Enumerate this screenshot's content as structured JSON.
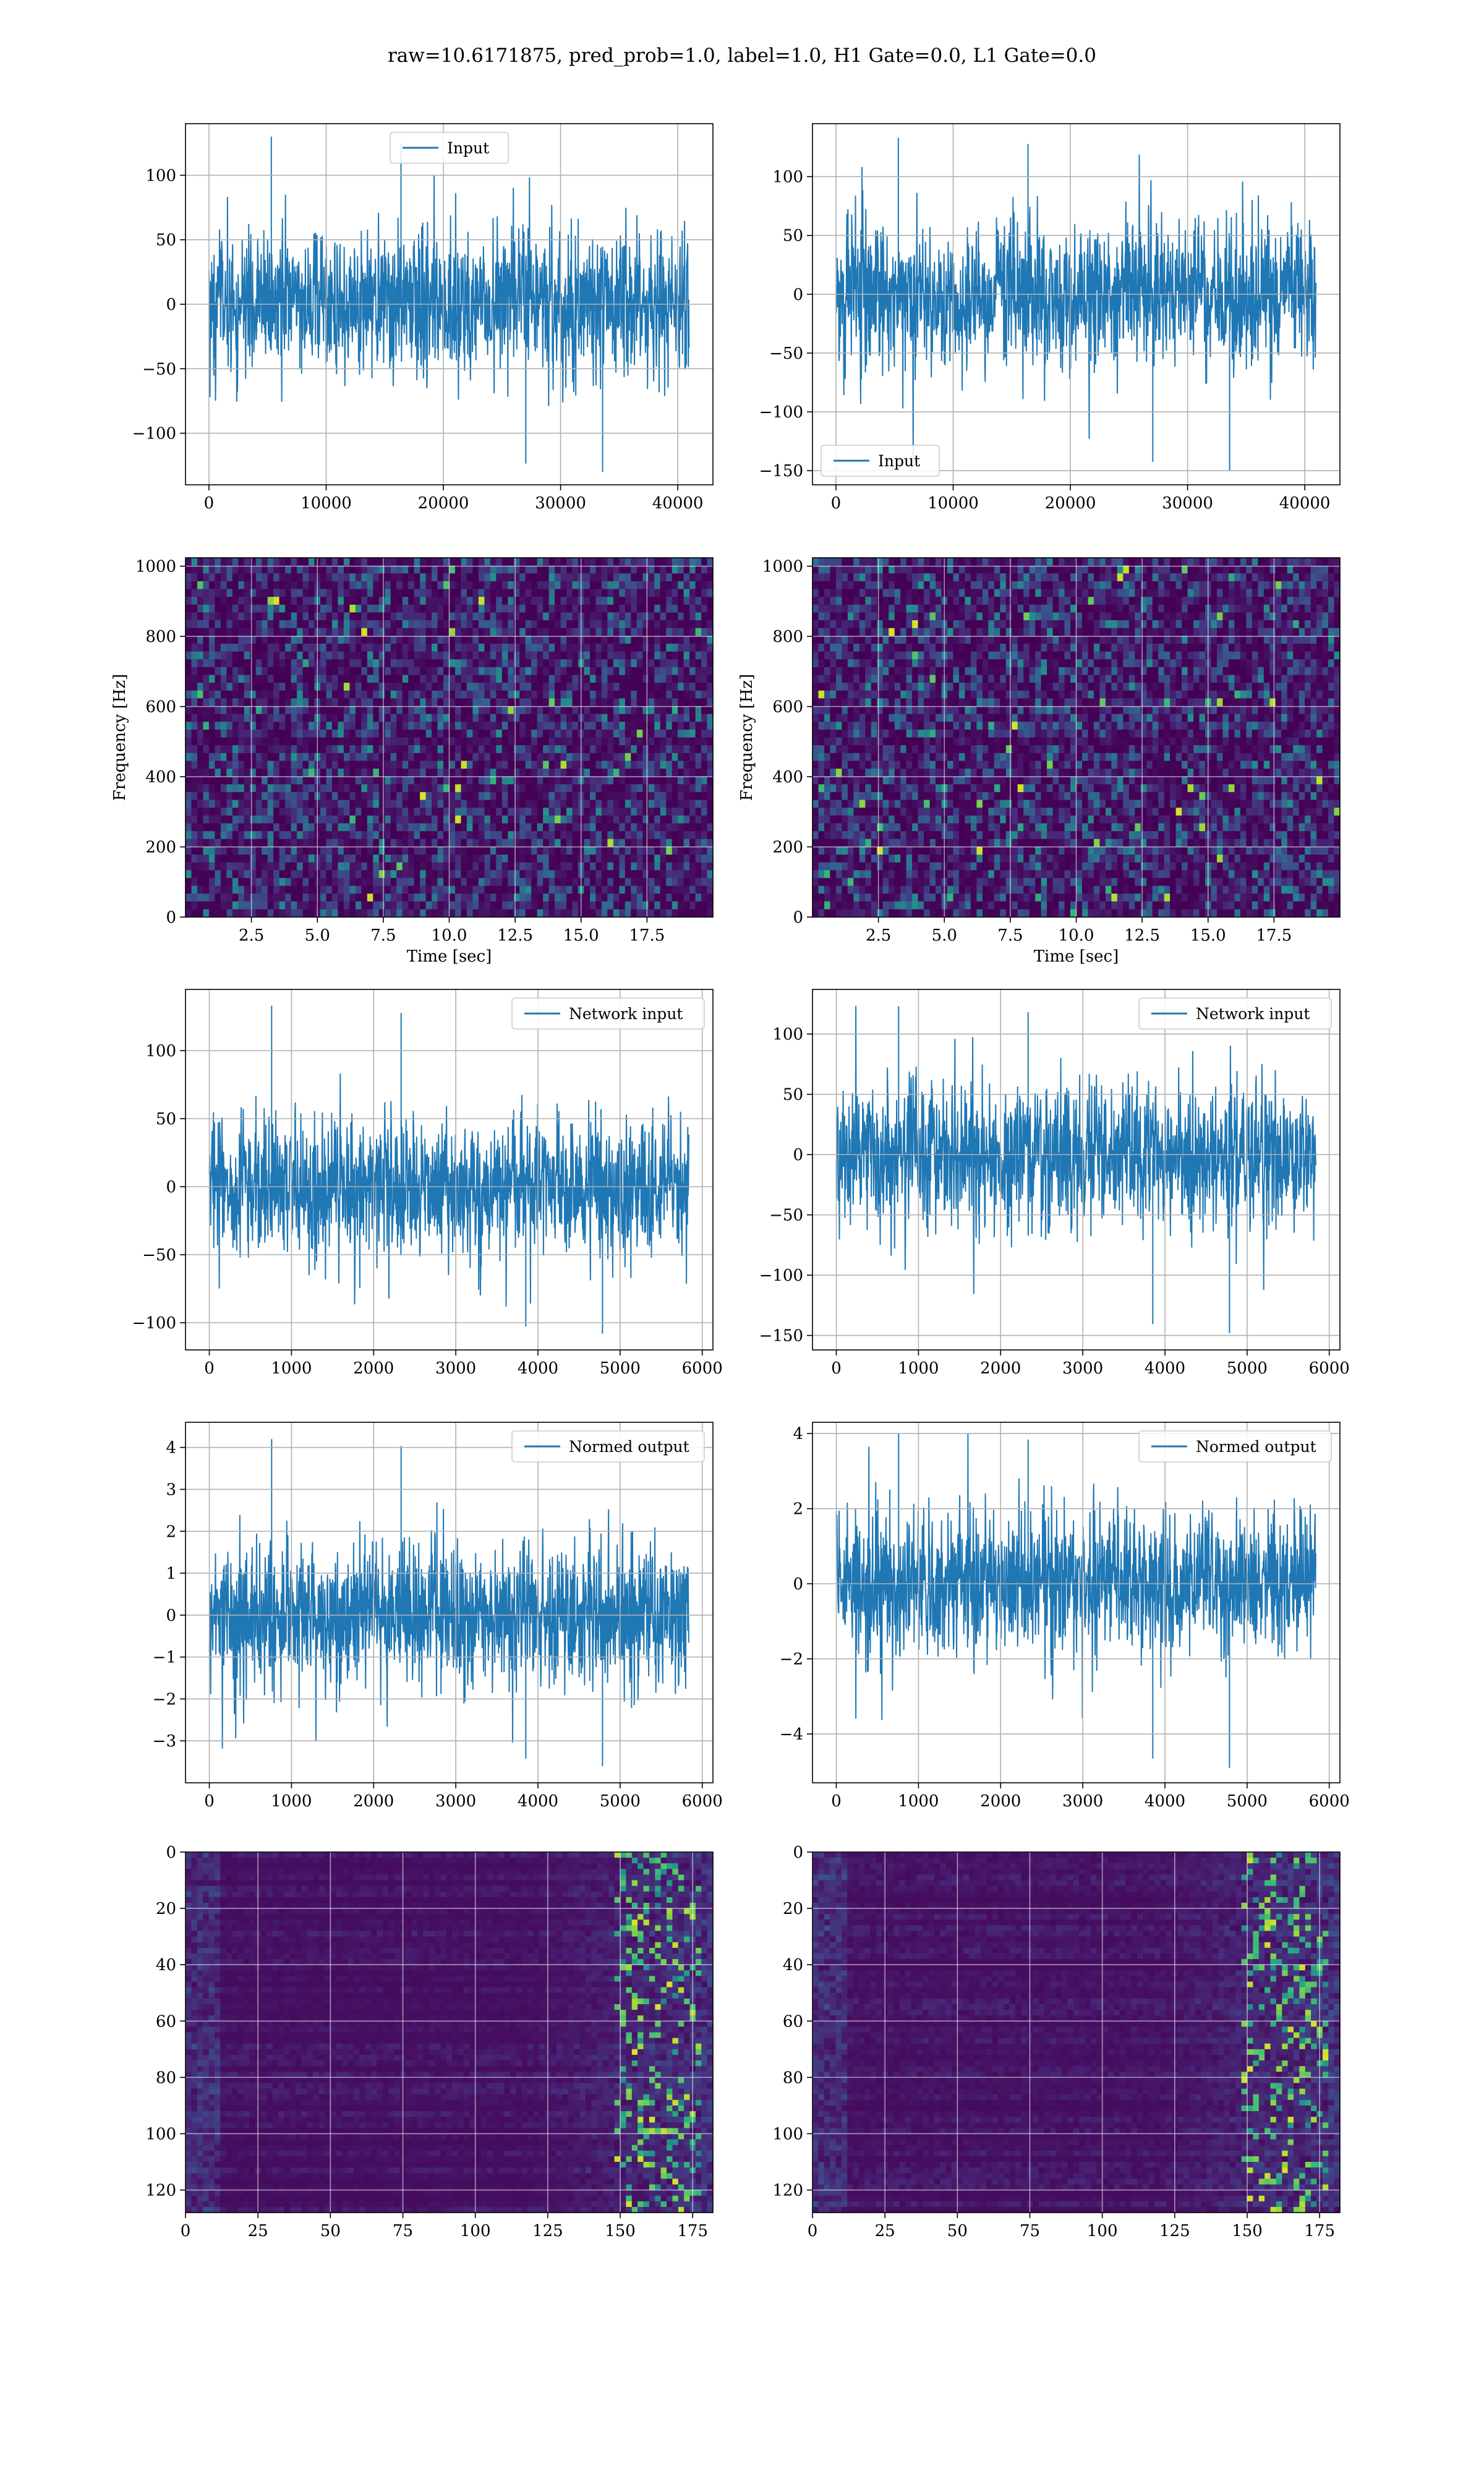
{
  "figure": {
    "suptitle": "raw=10.6171875, pred_prob=1.0, label=1.0, H1 Gate=0.0, L1 Gate=0.0",
    "line_color": "#1f77b4"
  },
  "chart_data": [
    {
      "id": "r0c0",
      "type": "line",
      "row": 0,
      "col": 0,
      "series": [
        {
          "name": "Input",
          "n_points": 40960,
          "x_range": [
            0,
            40960
          ],
          "amplitude_range": [
            -130,
            130
          ]
        }
      ],
      "legend": {
        "label": "Input",
        "placement": "upper center"
      },
      "xlim": [
        -2000,
        43000
      ],
      "ylim": [
        -140,
        140
      ],
      "xticks": [
        0,
        10000,
        20000,
        30000,
        40000
      ],
      "yticks": [
        -100,
        -50,
        0,
        50,
        100
      ],
      "xlabel": "",
      "ylabel": "",
      "grid": true
    },
    {
      "id": "r0c1",
      "type": "line",
      "row": 0,
      "col": 1,
      "series": [
        {
          "name": "Input",
          "n_points": 40960,
          "x_range": [
            0,
            40960
          ],
          "amplitude_range": [
            -150,
            133
          ]
        }
      ],
      "legend": {
        "label": "Input",
        "placement": "lower left"
      },
      "xlim": [
        -2000,
        43000
      ],
      "ylim": [
        -162,
        145
      ],
      "xticks": [
        0,
        10000,
        20000,
        30000,
        40000
      ],
      "yticks": [
        -150,
        -100,
        -50,
        0,
        50,
        100
      ],
      "xlabel": "",
      "ylabel": "",
      "grid": true
    },
    {
      "id": "r1c0",
      "type": "heatmap",
      "row": 1,
      "col": 0,
      "colormap": "viridis",
      "xlim": [
        0,
        20
      ],
      "ylim": [
        0,
        1024
      ],
      "xticks": [
        2.5,
        5.0,
        7.5,
        10.0,
        12.5,
        15.0,
        17.5
      ],
      "xtick_labels": [
        "2.5",
        "5.0",
        "7.5",
        "10.0",
        "12.5",
        "15.0",
        "17.5"
      ],
      "yticks": [
        0,
        200,
        400,
        600,
        800,
        1000
      ],
      "xlabel": "Time [sec]",
      "ylabel": "Frequency [Hz]",
      "grid": true
    },
    {
      "id": "r1c1",
      "type": "heatmap",
      "row": 1,
      "col": 1,
      "colormap": "viridis",
      "xlim": [
        0,
        20
      ],
      "ylim": [
        0,
        1024
      ],
      "xticks": [
        2.5,
        5.0,
        7.5,
        10.0,
        12.5,
        15.0,
        17.5
      ],
      "xtick_labels": [
        "2.5",
        "5.0",
        "7.5",
        "10.0",
        "12.5",
        "15.0",
        "17.5"
      ],
      "yticks": [
        0,
        200,
        400,
        600,
        800,
        1000
      ],
      "xlabel": "Time [sec]",
      "ylabel": "Frequency [Hz]",
      "grid": true
    },
    {
      "id": "r2c0",
      "type": "line",
      "row": 2,
      "col": 0,
      "series": [
        {
          "name": "Network input",
          "n_points": 5836,
          "x_range": [
            0,
            5836
          ],
          "amplitude_range": [
            -108,
            133
          ]
        }
      ],
      "legend": {
        "label": "Network input",
        "placement": "upper right"
      },
      "xlim": [
        -290,
        6130
      ],
      "ylim": [
        -120,
        145
      ],
      "xticks": [
        0,
        1000,
        2000,
        3000,
        4000,
        5000,
        6000
      ],
      "yticks": [
        -100,
        -50,
        0,
        50,
        100
      ],
      "xlabel": "",
      "ylabel": "",
      "grid": true
    },
    {
      "id": "r2c1",
      "type": "line",
      "row": 2,
      "col": 1,
      "series": [
        {
          "name": "Network input",
          "n_points": 5836,
          "x_range": [
            0,
            5836
          ],
          "amplitude_range": [
            -148,
            123
          ]
        }
      ],
      "legend": {
        "label": "Network input",
        "placement": "upper right"
      },
      "xlim": [
        -290,
        6130
      ],
      "ylim": [
        -162,
        137
      ],
      "xticks": [
        0,
        1000,
        2000,
        3000,
        4000,
        5000,
        6000
      ],
      "yticks": [
        -150,
        -100,
        -50,
        0,
        50,
        100
      ],
      "xlabel": "",
      "ylabel": "",
      "grid": true
    },
    {
      "id": "r3c0",
      "type": "line",
      "row": 3,
      "col": 0,
      "series": [
        {
          "name": "Normed output",
          "n_points": 5836,
          "x_range": [
            0,
            5836
          ],
          "amplitude_range": [
            -3.6,
            4.2
          ]
        }
      ],
      "legend": {
        "label": "Normed output",
        "placement": "upper right"
      },
      "xlim": [
        -290,
        6130
      ],
      "ylim": [
        -4.0,
        4.6
      ],
      "xticks": [
        0,
        1000,
        2000,
        3000,
        4000,
        5000,
        6000
      ],
      "yticks": [
        -3,
        -2,
        -1,
        0,
        1,
        2,
        3,
        4
      ],
      "xlabel": "",
      "ylabel": "",
      "grid": true
    },
    {
      "id": "r3c1",
      "type": "line",
      "row": 3,
      "col": 1,
      "series": [
        {
          "name": "Normed output",
          "n_points": 5836,
          "x_range": [
            0,
            5836
          ],
          "amplitude_range": [
            -4.9,
            4.0
          ]
        }
      ],
      "legend": {
        "label": "Normed output",
        "placement": "upper right"
      },
      "xlim": [
        -290,
        6130
      ],
      "ylim": [
        -5.3,
        4.3
      ],
      "xticks": [
        0,
        1000,
        2000,
        3000,
        4000,
        5000,
        6000
      ],
      "yticks": [
        -4,
        -2,
        0,
        2,
        4
      ],
      "xlabel": "",
      "ylabel": "",
      "grid": true
    },
    {
      "id": "r4c0",
      "type": "heatmap",
      "row": 4,
      "col": 0,
      "colormap": "viridis",
      "xlim": [
        0,
        182
      ],
      "ylim": [
        128,
        0
      ],
      "xticks": [
        0,
        25,
        50,
        75,
        100,
        125,
        150,
        175
      ],
      "yticks": [
        0,
        20,
        40,
        60,
        80,
        100,
        120
      ],
      "xlabel": "",
      "ylabel": "",
      "grid": true
    },
    {
      "id": "r4c1",
      "type": "heatmap",
      "row": 4,
      "col": 1,
      "colormap": "viridis",
      "xlim": [
        0,
        182
      ],
      "ylim": [
        128,
        0
      ],
      "xticks": [
        0,
        25,
        50,
        75,
        100,
        125,
        150,
        175
      ],
      "yticks": [
        0,
        20,
        40,
        60,
        80,
        100,
        120
      ],
      "xlabel": "",
      "ylabel": "",
      "grid": true
    }
  ]
}
